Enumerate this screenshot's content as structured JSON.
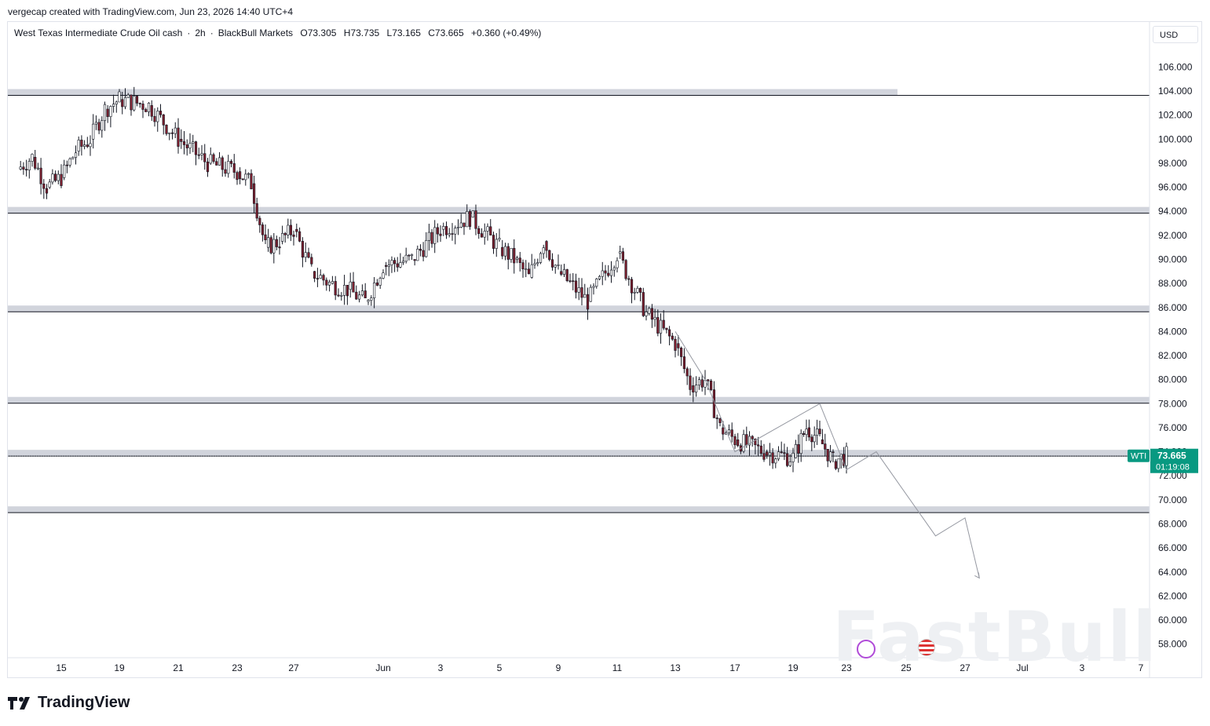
{
  "header": {
    "credit": "vergecap created with TradingView.com, Jun 23, 2026 14:40 UTC+4"
  },
  "legend": {
    "symbol_name": "West Texas Intermediate Crude Oil cash",
    "separator1": "·",
    "interval": "2h",
    "separator2": "·",
    "source": "BlackBull Markets",
    "open": "O73.305",
    "high": "H73.735",
    "low": "L73.165",
    "close": "C73.665",
    "change": "+0.360 (+0.49%)"
  },
  "currency_button": "USD",
  "price_badge": {
    "symbol": "WTI",
    "price": "73.665",
    "countdown": "01:19:08",
    "color": "#089981"
  },
  "watermark": "FastBull",
  "brand": "TradingView",
  "colors": {
    "up": "#ffffff",
    "down": "#7b1f2e",
    "wick": "#131722",
    "zone": "#d1d4dc",
    "drawing": "#9598a1"
  },
  "chart_data": {
    "type": "candlestick",
    "y_axis_ticks": [
      "106.000",
      "104.000",
      "102.000",
      "100.000",
      "98.000",
      "96.000",
      "94.000",
      "92.000",
      "90.000",
      "88.000",
      "86.000",
      "84.000",
      "82.000",
      "80.000",
      "78.000",
      "76.000",
      "74.000",
      "72.000",
      "70.000",
      "68.000",
      "66.000",
      "64.000",
      "62.000",
      "60.000",
      "58.000"
    ],
    "x_axis_ticks": [
      "15",
      "19",
      "21",
      "23",
      "27",
      "Jun",
      "3",
      "5",
      "9",
      "11",
      "13",
      "17",
      "19",
      "23",
      "25",
      "27",
      "Jul",
      "3",
      "7"
    ],
    "ylim": [
      57,
      108
    ],
    "support_resistance_zones": [
      103.9,
      94.1,
      85.9,
      78.3,
      73.9,
      69.2
    ],
    "overlapping_label": "74.000",
    "last_price": 73.665,
    "price_path": [
      {
        "date": "May 12",
        "price": 97.5
      },
      {
        "date": "May 13",
        "price": 98.5
      },
      {
        "date": "May 14",
        "price": 96.0
      },
      {
        "date": "May 15",
        "price": 96.8
      },
      {
        "date": "May 16",
        "price": 99.0
      },
      {
        "date": "May 17",
        "price": 100.0
      },
      {
        "date": "May 18",
        "price": 102.5
      },
      {
        "date": "May 19",
        "price": 103.3
      },
      {
        "date": "May 20",
        "price": 102.8
      },
      {
        "date": "May 21",
        "price": 100.0
      },
      {
        "date": "May 22",
        "price": 98.0
      },
      {
        "date": "May 23",
        "price": 97.3
      },
      {
        "date": "May 24",
        "price": 96.3
      },
      {
        "date": "May 25",
        "price": 91.0
      },
      {
        "date": "May 26",
        "price": 91.5
      },
      {
        "date": "May 27",
        "price": 92.5
      },
      {
        "date": "May 28",
        "price": 89.0
      },
      {
        "date": "May 29",
        "price": 88.0
      },
      {
        "date": "May 30",
        "price": 87.5
      },
      {
        "date": "May 31",
        "price": 86.5
      },
      {
        "date": "Jun 1",
        "price": 89.5
      },
      {
        "date": "Jun 2",
        "price": 90.0
      },
      {
        "date": "Jun 3",
        "price": 92.5
      },
      {
        "date": "Jun 4",
        "price": 93.5
      },
      {
        "date": "Jun 5",
        "price": 91.0
      },
      {
        "date": "Jun 6",
        "price": 90.0
      },
      {
        "date": "Jun 7",
        "price": 88.5
      },
      {
        "date": "Jun 8",
        "price": 91.5
      },
      {
        "date": "Jun 9",
        "price": 89.0
      },
      {
        "date": "Jun 10",
        "price": 86.5
      },
      {
        "date": "Jun 11",
        "price": 90.5
      },
      {
        "date": "Jun 12",
        "price": 85.5
      },
      {
        "date": "Jun 13",
        "price": 83.0
      },
      {
        "date": "Jun 14",
        "price": 79.5
      },
      {
        "date": "Jun 15",
        "price": 80.0
      },
      {
        "date": "Jun 16",
        "price": 76.0
      },
      {
        "date": "Jun 17",
        "price": 75.0
      },
      {
        "date": "Jun 18",
        "price": 74.0
      },
      {
        "date": "Jun 19",
        "price": 73.5
      },
      {
        "date": "Jun 20",
        "price": 76.0
      },
      {
        "date": "Jun 21",
        "price": 75.0
      },
      {
        "date": "Jun 22",
        "price": 73.2
      },
      {
        "date": "Jun 23",
        "price": 73.665
      }
    ],
    "projection_path": [
      {
        "date": "Jun 13",
        "price": 84.0
      },
      {
        "date": "Jun 15",
        "price": 80.0
      },
      {
        "date": "Jun 17",
        "price": 74.0
      },
      {
        "date": "Jun 21",
        "price": 78.0
      },
      {
        "date": "Jun 23",
        "price": 72.5
      },
      {
        "date": "Jun 24",
        "price": 74.0
      },
      {
        "date": "Jun 26",
        "price": 67.0
      },
      {
        "date": "Jun 27",
        "price": 68.5
      },
      {
        "date": "Jun 28",
        "price": 63.5
      }
    ]
  }
}
